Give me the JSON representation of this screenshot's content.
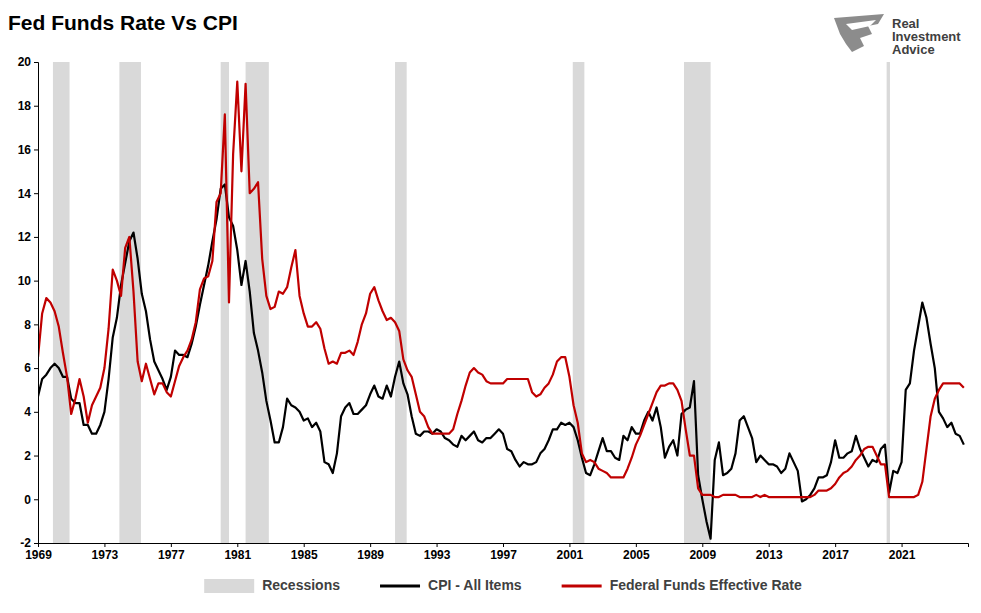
{
  "chart_data": {
    "type": "line",
    "title": "Fed Funds Rate Vs CPI",
    "annotations": [
      "Real",
      "Investment",
      "Advice"
    ],
    "x": [
      1969,
      1969.25,
      1969.5,
      1969.75,
      1970,
      1970.25,
      1970.5,
      1970.75,
      1971,
      1971.25,
      1971.5,
      1971.75,
      1972,
      1972.25,
      1972.5,
      1972.75,
      1973,
      1973.25,
      1973.5,
      1973.75,
      1974,
      1974.25,
      1974.5,
      1974.75,
      1975,
      1975.25,
      1975.5,
      1975.75,
      1976,
      1976.25,
      1976.5,
      1976.75,
      1977,
      1977.25,
      1977.5,
      1977.75,
      1978,
      1978.25,
      1978.5,
      1978.75,
      1979,
      1979.25,
      1979.5,
      1979.75,
      1980,
      1980.25,
      1980.5,
      1980.75,
      1981,
      1981.25,
      1981.5,
      1981.75,
      1982,
      1982.25,
      1982.5,
      1982.75,
      1983,
      1983.25,
      1983.5,
      1983.75,
      1984,
      1984.25,
      1984.5,
      1984.75,
      1985,
      1985.25,
      1985.5,
      1985.75,
      1986,
      1986.25,
      1986.5,
      1986.75,
      1987,
      1987.25,
      1987.5,
      1987.75,
      1988,
      1988.25,
      1988.5,
      1988.75,
      1989,
      1989.25,
      1989.5,
      1989.75,
      1990,
      1990.25,
      1990.5,
      1990.75,
      1991,
      1991.25,
      1991.5,
      1991.75,
      1992,
      1992.25,
      1992.5,
      1992.75,
      1993,
      1993.25,
      1993.5,
      1993.75,
      1994,
      1994.25,
      1994.5,
      1994.75,
      1995,
      1995.25,
      1995.5,
      1995.75,
      1996,
      1996.25,
      1996.5,
      1996.75,
      1997,
      1997.25,
      1997.5,
      1997.75,
      1998,
      1998.25,
      1998.5,
      1998.75,
      1999,
      1999.25,
      1999.5,
      1999.75,
      2000,
      2000.25,
      2000.5,
      2000.75,
      2001,
      2001.25,
      2001.5,
      2001.75,
      2002,
      2002.25,
      2002.5,
      2002.75,
      2003,
      2003.25,
      2003.5,
      2003.75,
      2004,
      2004.25,
      2004.5,
      2004.75,
      2005,
      2005.25,
      2005.5,
      2005.75,
      2006,
      2006.25,
      2006.5,
      2006.75,
      2007,
      2007.25,
      2007.5,
      2007.75,
      2008,
      2008.25,
      2008.5,
      2008.75,
      2009,
      2009.25,
      2009.5,
      2009.75,
      2010,
      2010.25,
      2010.5,
      2010.75,
      2011,
      2011.25,
      2011.5,
      2011.75,
      2012,
      2012.25,
      2012.5,
      2012.75,
      2013,
      2013.25,
      2013.5,
      2013.75,
      2014,
      2014.25,
      2014.5,
      2014.75,
      2015,
      2015.25,
      2015.5,
      2015.75,
      2016,
      2016.25,
      2016.5,
      2016.75,
      2017,
      2017.25,
      2017.5,
      2017.75,
      2018,
      2018.25,
      2018.5,
      2018.75,
      2019,
      2019.25,
      2019.5,
      2019.75,
      2020,
      2020.25,
      2020.5,
      2020.75,
      2021,
      2021.25,
      2021.5,
      2021.75,
      2022,
      2022.25,
      2022.5,
      2022.75,
      2023,
      2023.25,
      2023.5,
      2023.75,
      2024,
      2024.25,
      2024.5,
      2024.75
    ],
    "series": [
      {
        "name": "CPI - All Items",
        "color": "#000000",
        "values": [
          4.7,
          5.5,
          5.7,
          6.0,
          6.2,
          6.0,
          5.6,
          5.6,
          4.6,
          4.4,
          4.4,
          3.4,
          3.4,
          3.0,
          3.0,
          3.4,
          4.0,
          5.5,
          7.4,
          8.3,
          9.8,
          10.8,
          11.8,
          12.2,
          11.0,
          9.4,
          8.6,
          7.3,
          6.3,
          5.9,
          5.5,
          5.0,
          5.6,
          6.8,
          6.6,
          6.6,
          6.5,
          7.1,
          7.9,
          8.9,
          9.8,
          10.7,
          11.8,
          12.8,
          14.2,
          14.4,
          12.9,
          12.5,
          11.4,
          9.8,
          10.9,
          9.5,
          7.6,
          6.8,
          5.8,
          4.5,
          3.6,
          2.6,
          2.6,
          3.3,
          4.6,
          4.3,
          4.2,
          4.0,
          3.6,
          3.7,
          3.3,
          3.5,
          3.1,
          1.7,
          1.6,
          1.2,
          2.1,
          3.8,
          4.2,
          4.4,
          3.9,
          3.9,
          4.1,
          4.3,
          4.8,
          5.2,
          4.7,
          4.6,
          5.2,
          4.7,
          5.6,
          6.3,
          5.3,
          4.8,
          3.8,
          3.0,
          2.9,
          3.1,
          3.1,
          3.0,
          3.2,
          3.1,
          2.8,
          2.7,
          2.5,
          2.4,
          2.9,
          2.7,
          2.9,
          3.1,
          2.7,
          2.6,
          2.8,
          2.8,
          3.0,
          3.2,
          3.0,
          2.3,
          2.2,
          1.8,
          1.5,
          1.7,
          1.6,
          1.6,
          1.7,
          2.1,
          2.3,
          2.7,
          3.2,
          3.2,
          3.5,
          3.4,
          3.5,
          3.3,
          2.7,
          1.9,
          1.2,
          1.1,
          1.6,
          2.2,
          2.8,
          2.2,
          2.2,
          1.9,
          1.8,
          2.9,
          2.7,
          3.3,
          3.0,
          3.0,
          3.6,
          4.0,
          3.6,
          4.2,
          3.3,
          1.9,
          2.4,
          2.7,
          2.0,
          3.9,
          4.1,
          4.2,
          5.4,
          1.1,
          0.0,
          -1.0,
          -1.8,
          1.8,
          2.6,
          1.1,
          1.2,
          1.4,
          2.1,
          3.6,
          3.8,
          3.3,
          2.8,
          1.7,
          2.0,
          1.8,
          1.6,
          1.6,
          1.5,
          1.2,
          1.4,
          2.1,
          1.7,
          1.3,
          -0.1,
          0.0,
          0.2,
          0.5,
          1.0,
          1.0,
          1.1,
          1.7,
          2.7,
          1.9,
          1.9,
          2.1,
          2.2,
          2.9,
          2.3,
          1.9,
          1.5,
          1.8,
          1.7,
          2.3,
          2.5,
          0.3,
          1.3,
          1.2,
          1.7,
          5.0,
          5.3,
          6.8,
          7.9,
          9.0,
          8.3,
          7.1,
          6.0,
          4.0,
          3.7,
          3.3,
          3.5,
          3.0,
          2.9,
          2.5
        ]
      },
      {
        "name": "Federal Funds Effective Rate",
        "color": "#c00000",
        "values": [
          6.5,
          8.5,
          9.2,
          9.0,
          8.6,
          7.9,
          6.7,
          5.6,
          3.9,
          4.6,
          5.5,
          4.7,
          3.5,
          4.3,
          4.7,
          5.1,
          6.0,
          7.8,
          10.5,
          10.0,
          9.3,
          11.5,
          12.0,
          9.5,
          6.3,
          5.4,
          6.2,
          5.5,
          4.8,
          5.3,
          5.3,
          4.9,
          4.7,
          5.4,
          6.1,
          6.5,
          6.8,
          7.3,
          8.1,
          9.6,
          10.1,
          10.2,
          10.9,
          13.6,
          14.0,
          17.6,
          9.0,
          15.8,
          19.1,
          15.0,
          19.0,
          14.0,
          14.2,
          14.5,
          11.0,
          9.3,
          8.7,
          8.8,
          9.5,
          9.4,
          9.7,
          10.6,
          11.4,
          9.3,
          8.5,
          7.9,
          7.9,
          8.1,
          7.8,
          6.9,
          6.2,
          6.3,
          6.2,
          6.7,
          6.7,
          6.8,
          6.6,
          7.2,
          8.0,
          8.5,
          9.4,
          9.7,
          9.1,
          8.6,
          8.2,
          8.3,
          8.1,
          7.7,
          6.4,
          5.9,
          5.6,
          4.8,
          4.0,
          3.8,
          3.3,
          3.0,
          3.0,
          3.0,
          3.0,
          3.0,
          3.2,
          3.9,
          4.5,
          5.2,
          5.8,
          6.0,
          5.8,
          5.7,
          5.4,
          5.3,
          5.3,
          5.3,
          5.3,
          5.5,
          5.5,
          5.5,
          5.5,
          5.5,
          5.5,
          4.9,
          4.7,
          4.8,
          5.1,
          5.3,
          5.7,
          6.3,
          6.5,
          6.5,
          5.6,
          4.3,
          3.5,
          2.1,
          1.7,
          1.8,
          1.7,
          1.4,
          1.3,
          1.2,
          1.0,
          1.0,
          1.0,
          1.0,
          1.4,
          1.9,
          2.5,
          2.9,
          3.4,
          3.9,
          4.4,
          4.9,
          5.2,
          5.2,
          5.3,
          5.3,
          5.0,
          4.5,
          3.2,
          2.0,
          2.0,
          0.5,
          0.2,
          0.2,
          0.2,
          0.1,
          0.1,
          0.2,
          0.2,
          0.2,
          0.2,
          0.1,
          0.1,
          0.1,
          0.1,
          0.2,
          0.1,
          0.2,
          0.1,
          0.1,
          0.1,
          0.1,
          0.1,
          0.1,
          0.1,
          0.1,
          0.1,
          0.1,
          0.1,
          0.2,
          0.4,
          0.4,
          0.4,
          0.5,
          0.7,
          1.0,
          1.2,
          1.3,
          1.5,
          1.8,
          2.0,
          2.3,
          2.4,
          2.4,
          2.0,
          1.6,
          1.6,
          0.1,
          0.1,
          0.1,
          0.1,
          0.1,
          0.1,
          0.1,
          0.2,
          0.8,
          2.3,
          3.8,
          4.6,
          5.0,
          5.3,
          5.3,
          5.3,
          5.3,
          5.3,
          5.1
        ]
      }
    ],
    "recessions": {
      "name": "Recessions",
      "color": "#d9d9d9",
      "periods": [
        [
          1969.9,
          1970.9
        ],
        [
          1973.9,
          1975.2
        ],
        [
          1980.0,
          1980.5
        ],
        [
          1981.5,
          1982.9
        ],
        [
          1990.5,
          1991.2
        ],
        [
          2001.2,
          2001.9
        ],
        [
          2007.9,
          2009.5
        ],
        [
          2020.1,
          2020.3
        ]
      ]
    },
    "xlim": [
      1969,
      2025
    ],
    "xticks": [
      1969,
      1973,
      1977,
      1981,
      1985,
      1989,
      1993,
      1997,
      2001,
      2005,
      2009,
      2013,
      2017,
      2021
    ],
    "ylim": [
      -2,
      20
    ],
    "yticks": [
      -2,
      0,
      2,
      4,
      6,
      8,
      10,
      12,
      14,
      16,
      18,
      20
    ],
    "grid": false,
    "legend": "bottom"
  }
}
